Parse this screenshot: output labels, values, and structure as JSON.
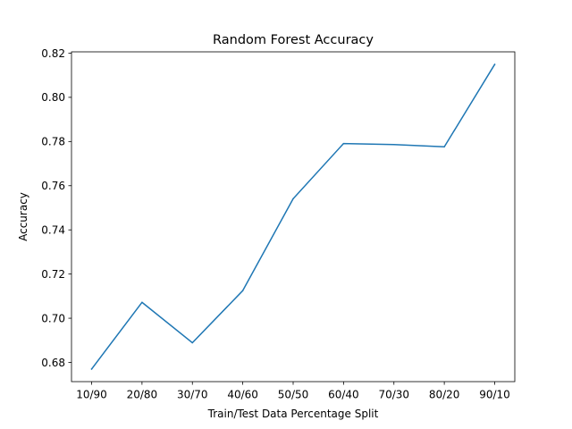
{
  "chart_data": {
    "type": "line",
    "title": "Random Forest Accuracy",
    "xlabel": "Train/Test Data Percentage Split",
    "ylabel": "Accuracy",
    "categories": [
      "10/90",
      "20/80",
      "30/70",
      "40/60",
      "50/50",
      "60/40",
      "70/30",
      "80/20",
      "90/10"
    ],
    "series": [
      {
        "values": [
          0.677,
          0.7072,
          0.6889,
          0.7125,
          0.7541,
          0.7791,
          0.7786,
          0.7776,
          0.8149
        ],
        "color": "#1f77b4"
      }
    ],
    "ylim": [
      0.6713,
      0.8206
    ],
    "yticks": [
      0.68,
      0.7,
      0.72,
      0.74,
      0.76,
      0.78,
      0.8,
      0.82
    ],
    "ytick_labels": [
      "0.68",
      "0.70",
      "0.72",
      "0.74",
      "0.76",
      "0.78",
      "0.80",
      "0.82"
    ],
    "grid": false,
    "legend": "none"
  }
}
